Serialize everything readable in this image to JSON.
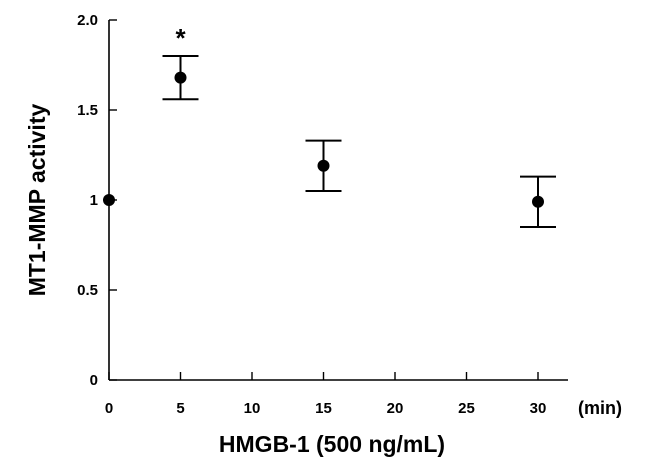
{
  "chart_data": {
    "type": "scatter",
    "title": "",
    "xlabel": "HMGB-1  (500 ng/mL)",
    "ylabel": "MT1-MMP activity",
    "x_unit": "(min)",
    "xlim": [
      0,
      30
    ],
    "ylim": [
      0,
      2.0
    ],
    "x_ticks": [
      0,
      5,
      10,
      15,
      20,
      25,
      30
    ],
    "x_tick_labels": [
      "0",
      "5",
      "10",
      "15",
      "20",
      "25",
      "30"
    ],
    "y_ticks": [
      0,
      0.5,
      1,
      1.5,
      2.0
    ],
    "y_tick_labels": [
      "0",
      "0.5",
      "1",
      "1.5",
      "2.0"
    ],
    "grid": false,
    "series": [
      {
        "points": [
          {
            "x": 0,
            "y": 1.0,
            "err": 0
          },
          {
            "x": 5,
            "y": 1.68,
            "err": 0.12
          },
          {
            "x": 15,
            "y": 1.19,
            "err": 0.14
          },
          {
            "x": 30,
            "y": 0.99,
            "err": 0.14
          }
        ]
      }
    ],
    "annotations": [
      {
        "text": "*",
        "x": 5
      }
    ],
    "marker_color": "#000000"
  }
}
